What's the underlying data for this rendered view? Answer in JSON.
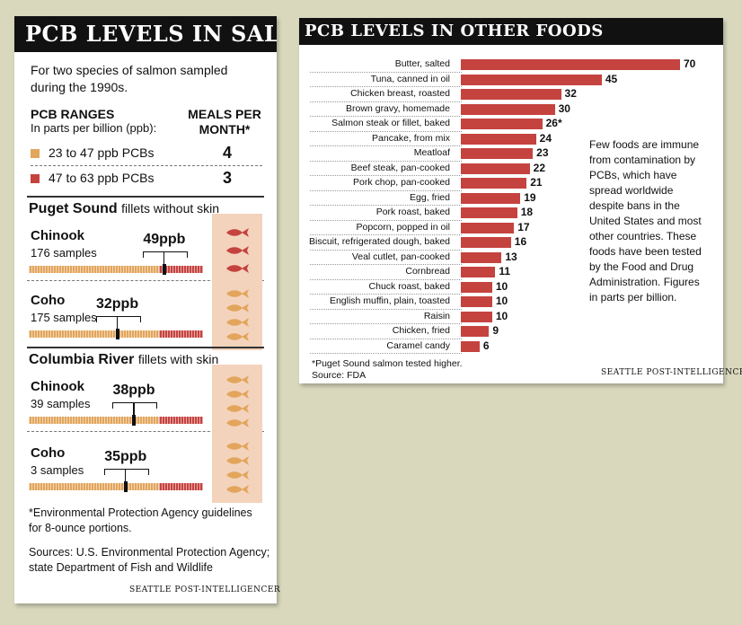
{
  "colors": {
    "background": "#d9d8bd",
    "bar_red": "#c5433f",
    "range_low": "#e2a55b",
    "range_high": "#c5433f",
    "fish_box": "#f4d3bd",
    "fish_high": "#c5433f",
    "fish_low": "#e2a55b"
  },
  "left": {
    "title": "PCB LEVELS IN SALMON",
    "intro": [
      "For two species of salmon sampled",
      "during the 1990s."
    ],
    "ranges_heading": "PCB RANGES",
    "ranges_sub": "In parts per billion (ppb):",
    "meals_heading": [
      "MEALS PER",
      "MONTH*"
    ],
    "ranges": [
      {
        "label": "23 to 47 ppb PCBs",
        "meals": "4",
        "color": "#e2a55b"
      },
      {
        "label": "47 to 63 ppb PCBs",
        "meals": "3",
        "color": "#c5433f"
      }
    ],
    "puget": {
      "heading": "Puget Sound",
      "subheading": "fillets without skin",
      "species": [
        {
          "name": "Chinook",
          "samples": "176 samples",
          "value_label": "49ppb",
          "value": 49,
          "meals": 3
        },
        {
          "name": "Coho",
          "samples": "175 samples",
          "value_label": "32ppb",
          "value": 32,
          "meals": 4
        }
      ]
    },
    "columbia": {
      "heading": "Columbia River",
      "subheading": "fillets with skin",
      "species": [
        {
          "name": "Chinook",
          "samples": "39 samples",
          "value_label": "38ppb",
          "value": 38,
          "meals": 4
        },
        {
          "name": "Coho",
          "samples": "3 samples",
          "value_label": "35ppb",
          "value": 35,
          "meals": 4
        }
      ]
    },
    "footnote": [
      "*Environmental Protection Agency guidelines",
      "for 8-ounce portions."
    ],
    "sources": [
      "Sources: U.S. Environmental Protection Agency;",
      "state Department of Fish and Wildlife"
    ],
    "credit": "SEATTLE POST-INTELLIGENCER"
  },
  "right": {
    "title": "PCB LEVELS IN OTHER FOODS",
    "note": "Few foods are immune from contamination by PCBs, which have spread worldwide despite bans in the United States and most other countries. These foods have been tested by the Food and Drug Administration. Figures in parts per billion.",
    "footnote": "*Puget Sound salmon tested higher.",
    "source": "Source: FDA",
    "credit": "SEATTLE POST-INTELLIGENCER"
  },
  "chart_data": [
    {
      "type": "bar",
      "title": "PCB LEVELS IN SALMON",
      "ranges": [
        {
          "label": "23 to 47 ppb PCBs",
          "min": 23,
          "max": 47,
          "meals_per_month": 4
        },
        {
          "label": "47 to 63 ppb PCBs",
          "min": 47,
          "max": 63,
          "meals_per_month": 3
        }
      ],
      "categories": [
        "Puget Sound Chinook",
        "Puget Sound Coho",
        "Columbia River Chinook",
        "Columbia River Coho"
      ],
      "values": [
        49,
        32,
        38,
        35
      ],
      "samples": [
        176,
        175,
        39,
        3
      ],
      "meals_per_month": [
        3,
        4,
        4,
        4
      ]
    },
    {
      "type": "bar",
      "title": "PCB LEVELS IN OTHER FOODS",
      "categories": [
        "Butter, salted",
        "Tuna, canned in oil",
        "Chicken breast, roasted",
        "Brown gravy, homemade",
        "Salmon steak or fillet, baked",
        "Pancake, from mix",
        "Meatloaf",
        "Beef steak, pan-cooked",
        "Pork chop, pan-cooked",
        "Egg, fried",
        "Pork roast, baked",
        "Popcorn, popped in oil",
        "Biscuit, refrigerated dough, baked",
        "Veal cutlet, pan-cooked",
        "Cornbread",
        "Chuck roast, baked",
        "English muffin, plain, toasted",
        "Raisin",
        "Chicken, fried",
        "Caramel candy"
      ],
      "values": [
        70,
        45,
        32,
        30,
        26,
        24,
        23,
        22,
        21,
        19,
        18,
        17,
        16,
        13,
        11,
        10,
        10,
        10,
        9,
        6
      ],
      "value_labels": [
        "70",
        "45",
        "32",
        "30",
        "26*",
        "24",
        "23",
        "22",
        "21",
        "19",
        "18",
        "17",
        "16",
        "13",
        "11",
        "10",
        "10",
        "10",
        "9",
        "6"
      ],
      "xlim": [
        0,
        70
      ]
    }
  ]
}
